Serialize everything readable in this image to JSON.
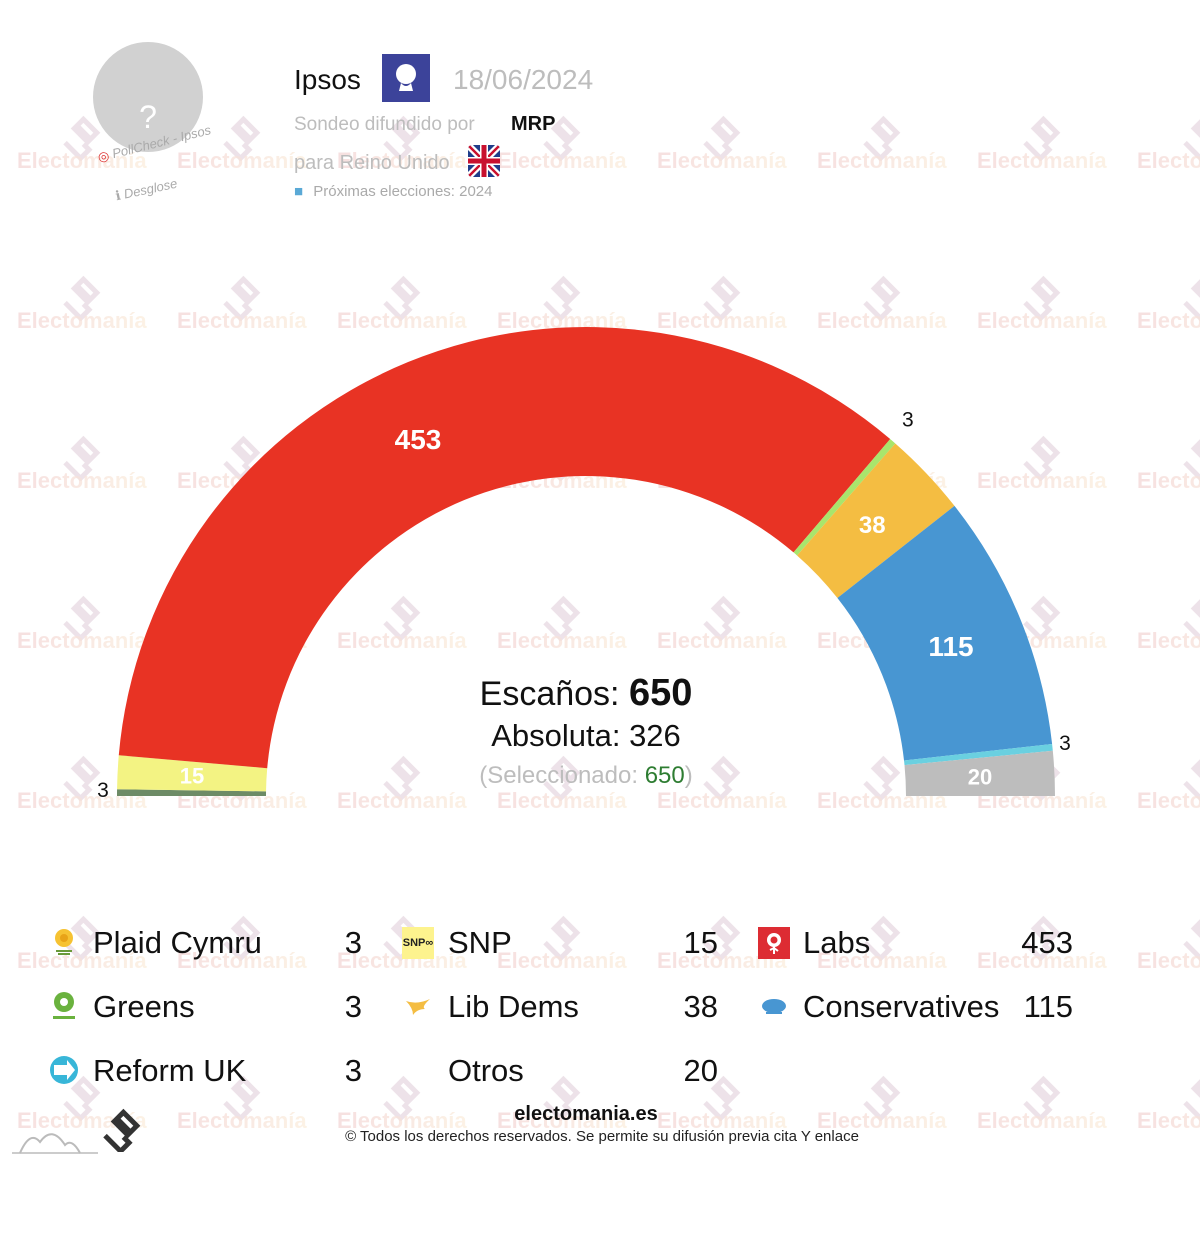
{
  "header": {
    "pollster": "Ipsos",
    "date": "18/06/2024",
    "sondeo_label": "Sondeo difundido por",
    "media": "MRP",
    "para_label": "para Reino Unido",
    "proximas": "Próximas elecciones: 2024",
    "avatar_placeholder": "?",
    "pollcheck": "PollCheck - Ipsos",
    "desglose": "ℹ Desglose"
  },
  "center": {
    "escanos_label": "Escaños:",
    "escanos_value": "650",
    "absoluta": "Absoluta: 326",
    "seleccionado_label": "(Seleccionado:",
    "seleccionado_value": "650",
    "seleccionado_close": ")"
  },
  "arc_labels": {
    "plaid": "3",
    "snp": "15",
    "labs": "453",
    "greens": "3",
    "libdems": "38",
    "cons": "115",
    "reform": "3",
    "otros": "20"
  },
  "legend": [
    {
      "name": "Plaid Cymru",
      "seats": "3",
      "color": "#6d8b66"
    },
    {
      "name": "Greens",
      "seats": "3",
      "color": "#a9e56c"
    },
    {
      "name": "Reform UK",
      "seats": "3",
      "color": "#6ad0e0"
    },
    {
      "name": "SNP",
      "seats": "15",
      "color": "#f3f383"
    },
    {
      "name": "Lib Dems",
      "seats": "38",
      "color": "#f4bd42"
    },
    {
      "name": "Otros",
      "seats": "20",
      "color": "#bdbdbd"
    },
    {
      "name": "Labs",
      "seats": "453",
      "color": "#e83324"
    },
    {
      "name": "Conservatives",
      "seats": "115",
      "color": "#4896d2"
    }
  ],
  "footer": {
    "site": "electomania.es",
    "copyright": "© Todos los derechos reservados. Se permite su difusión previa cita Y enlace"
  },
  "watermark": "Electomanía",
  "chart_data": {
    "type": "pie",
    "subtype": "parliament-semicircle",
    "title": "Ipsos 18/06/2024 — Reino Unido",
    "total_seats": 650,
    "majority": 326,
    "categories": [
      "Plaid Cymru",
      "SNP",
      "Labs",
      "Greens",
      "Lib Dems",
      "Conservatives",
      "Reform UK",
      "Otros"
    ],
    "values": [
      3,
      15,
      453,
      3,
      38,
      115,
      3,
      20
    ],
    "colors": [
      "#6d8b66",
      "#f3f383",
      "#e83324",
      "#a9e56c",
      "#f4bd42",
      "#4896d2",
      "#6ad0e0",
      "#bdbdbd"
    ],
    "order": "left-to-right"
  }
}
